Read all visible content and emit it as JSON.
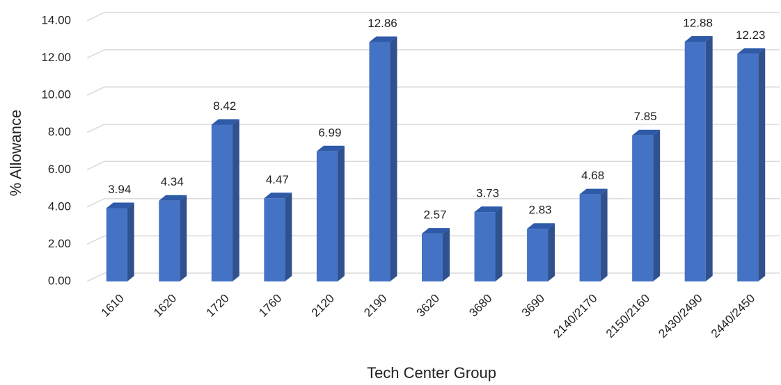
{
  "chart_data": {
    "type": "bar3d",
    "x_label": "Tech Center Group",
    "y_label": "% Allowance",
    "categories": [
      "1610",
      "1620",
      "1720",
      "1760",
      "2120",
      "2190",
      "3620",
      "3680",
      "3690",
      "2140/2170",
      "2150/2160",
      "2430/2490",
      "2440/2450"
    ],
    "values": [
      3.94,
      4.34,
      8.42,
      4.47,
      6.99,
      12.86,
      2.57,
      3.73,
      2.83,
      4.68,
      7.85,
      12.88,
      12.23
    ],
    "color": "#4472c4",
    "ylim": [
      0,
      14
    ],
    "yticks": [
      {
        "value": 0,
        "label": "0.00"
      },
      {
        "value": 2,
        "label": "2.00"
      },
      {
        "value": 4,
        "label": "4.00"
      },
      {
        "value": 6,
        "label": "6.00"
      },
      {
        "value": 8,
        "label": "8.00"
      },
      {
        "value": 10,
        "label": "10.00"
      },
      {
        "value": 12,
        "label": "12.00"
      },
      {
        "value": 14,
        "label": "14.00"
      }
    ],
    "grid": true
  }
}
